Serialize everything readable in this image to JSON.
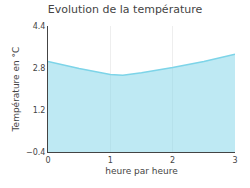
{
  "chart_data": {
    "type": "area",
    "title": "Evolution de la température",
    "xlabel": "heure par heure",
    "ylabel": "Température en °C",
    "x": [
      0,
      0.5,
      1.0,
      1.2,
      1.5,
      2.0,
      2.5,
      3.0
    ],
    "values": [
      3.05,
      2.78,
      2.55,
      2.52,
      2.62,
      2.82,
      3.05,
      3.32
    ],
    "color": "#7dd4e8",
    "xlim": [
      0,
      3
    ],
    "ylim": [
      -0.4,
      4.4
    ],
    "xticks": [
      0,
      1,
      2,
      3
    ],
    "yticks": [
      -0.4,
      1.2,
      2.8,
      4.4
    ],
    "grid": "x"
  }
}
